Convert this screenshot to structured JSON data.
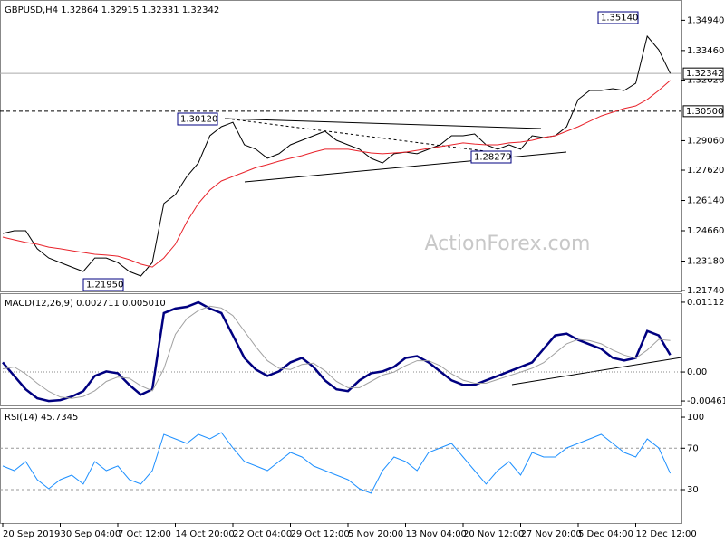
{
  "chart_data": [
    {
      "type": "line",
      "title": "GBPUSD,H4 1.32864 1.32915 1.32331 1.32342",
      "watermark": "ActionForex.com",
      "ylim": [
        1.217,
        1.3584
      ],
      "yticks": [
        {
          "value": 1.3494,
          "label": "1.34940"
        },
        {
          "value": 1.3346,
          "label": "1.33460"
        },
        {
          "value": 1.3202,
          "label": "1.32020"
        },
        {
          "value": 1.2906,
          "label": "1.29060"
        },
        {
          "value": 1.2762,
          "label": "1.27620"
        },
        {
          "value": 1.2614,
          "label": "1.26140"
        },
        {
          "value": 1.2466,
          "label": "1.24660"
        },
        {
          "value": 1.2318,
          "label": "1.23180"
        },
        {
          "value": 1.2174,
          "label": "1.21740"
        }
      ],
      "price_lines": [
        {
          "value": 1.32342,
          "label": "1.32342",
          "style": "solid"
        },
        {
          "value": 1.305,
          "label": "1.30500",
          "style": "dashed"
        }
      ],
      "annotations": [
        {
          "value": 1.3514,
          "label": "1.35140"
        },
        {
          "value": 1.3012,
          "label": "1.30120"
        },
        {
          "value": 1.2195,
          "label": "1.21950"
        },
        {
          "value": 1.28279,
          "label": "1.28279"
        }
      ],
      "series": [
        {
          "color": "#000000",
          "values": [
            1.2453,
            1.2466,
            1.2466,
            1.2378,
            1.2333,
            1.2311,
            1.2289,
            1.2267,
            1.2333,
            1.2333,
            1.2311,
            1.2267,
            1.2245,
            1.2311,
            1.2599,
            1.2643,
            1.2731,
            1.2797,
            1.293,
            1.2974,
            1.2996,
            1.2886,
            1.2864,
            1.282,
            1.2842,
            1.2886,
            1.2908,
            1.293,
            1.2952,
            1.2908,
            1.2886,
            1.2864,
            1.282,
            1.2797,
            1.2842,
            1.285,
            1.2842,
            1.2864,
            1.2886,
            1.293,
            1.293,
            1.2939,
            1.2886,
            1.2864,
            1.2886,
            1.2864,
            1.293,
            1.2921,
            1.293,
            1.2974,
            1.3107,
            1.3151,
            1.3151,
            1.316,
            1.3151,
            1.3186,
            1.3416,
            1.335,
            1.32342
          ]
        },
        {
          "color": "#e8222a",
          "values": [
            1.2435,
            1.2422,
            1.2409,
            1.24,
            1.2386,
            1.2378,
            1.2369,
            1.236,
            1.2351,
            1.2347,
            1.2342,
            1.2325,
            1.2303,
            1.2289,
            1.2333,
            1.24,
            1.251,
            1.2599,
            1.2665,
            1.2709,
            1.2731,
            1.2753,
            1.2775,
            1.2789,
            1.2806,
            1.282,
            1.2833,
            1.285,
            1.2864,
            1.2864,
            1.2864,
            1.2855,
            1.2846,
            1.2842,
            1.2846,
            1.285,
            1.2859,
            1.2868,
            1.2877,
            1.2886,
            1.2895,
            1.289,
            1.2886,
            1.2886,
            1.2895,
            1.2899,
            1.2908,
            1.2921,
            1.293,
            1.2952,
            1.2974,
            1.3001,
            1.3027,
            1.3045,
            1.3063,
            1.3076,
            1.3107,
            1.3151,
            1.32
          ]
        }
      ]
    },
    {
      "type": "line",
      "title": "MACD(12,26,9) 0.002711 0.005010",
      "ylim": [
        -0.00533,
        0.01227
      ],
      "yticks": [
        0.011123,
        {
          "value": 0,
          "label": "0.00"
        },
        -0.004617
      ],
      "series": [
        {
          "color": "#000080",
          "values": [
            0.00153,
            -0.00062,
            -0.00276,
            -0.00419,
            -0.00462,
            -0.00448,
            -0.00391,
            -0.00305,
            -0.00062,
            0.0001,
            -0.00019,
            -0.00205,
            -0.00362,
            -0.00276,
            0.0094,
            0.01012,
            0.0104,
            0.01112,
            0.01012,
            0.0094,
            0.00583,
            0.00225,
            0.00039,
            -0.00062,
            0.0001,
            0.00153,
            0.00225,
            0.00082,
            -0.00133,
            -0.00276,
            -0.00305,
            -0.00133,
            -0.00019,
            0.0001,
            0.00082,
            0.00225,
            0.00253,
            0.00153,
            0.0001,
            -0.00133,
            -0.00205,
            -0.00205,
            -0.00133,
            -0.00062,
            0.0001,
            0.00082,
            0.00153,
            0.00368,
            0.00583,
            0.00611,
            0.00511,
            0.00439,
            0.00368,
            0.00225,
            0.00182,
            0.00225,
            0.00654,
            0.00583,
            0.002711
          ]
        },
        {
          "color": "#a0a0a0",
          "values": [
            0.0005,
            0.0008,
            -0.0003,
            -0.0018,
            -0.0031,
            -0.004,
            -0.0042,
            -0.0039,
            -0.003,
            -0.0015,
            -0.0008,
            -0.001,
            -0.0022,
            -0.003,
            0.0005,
            0.006,
            0.0085,
            0.0098,
            0.0105,
            0.0102,
            0.009,
            0.0065,
            0.004,
            0.0018,
            0.0006,
            0.0004,
            0.0012,
            0.0014,
            0.0002,
            -0.0015,
            -0.0025,
            -0.0025,
            -0.0015,
            -0.0005,
            0,
            0.001,
            0.0018,
            0.0018,
            0.001,
            -0.0003,
            -0.0013,
            -0.0018,
            -0.0018,
            -0.0012,
            -0.0006,
            0,
            0.0006,
            0.0015,
            0.003,
            0.0045,
            0.0052,
            0.005,
            0.0045,
            0.0035,
            0.0027,
            0.0022,
            0.0035,
            0.0052,
            0.00501
          ]
        }
      ]
    },
    {
      "type": "line",
      "title": "RSI(14) 45.7345",
      "ylim": [
        -2.4,
        107.9
      ],
      "yticks": [
        100,
        70,
        30
      ],
      "levels": [
        70,
        30
      ],
      "categories": [
        "20 Sep 2019",
        null,
        null,
        null,
        null,
        "30 Sep 04:00",
        null,
        null,
        null,
        null,
        "7 Oct 12:00",
        null,
        null,
        null,
        null,
        "14 Oct 20:00",
        null,
        null,
        null,
        null,
        "22 Oct 04:00",
        null,
        null,
        null,
        null,
        "29 Oct 12:00",
        null,
        null,
        null,
        null,
        "5 Nov 20:00",
        null,
        null,
        null,
        null,
        "13 Nov 04:00",
        null,
        null,
        null,
        null,
        "20 Nov 12:00",
        null,
        null,
        null,
        null,
        "27 Nov 20:00",
        null,
        null,
        null,
        null,
        "5 Dec 04:00",
        null,
        null,
        null,
        null,
        "12 Dec 12:00",
        null,
        null,
        null
      ],
      "series": [
        {
          "color": "#1e90ff",
          "values": [
            52.8,
            48.4,
            57.1,
            39.6,
            30.9,
            39.6,
            44.0,
            35.3,
            57.1,
            48.4,
            52.8,
            39.6,
            35.3,
            48.4,
            83.4,
            79.0,
            74.6,
            83.4,
            79.0,
            85.1,
            70.3,
            57.1,
            52.8,
            48.4,
            57.1,
            65.9,
            61.5,
            52.8,
            48.4,
            44.0,
            39.6,
            30.9,
            26.5,
            48.4,
            61.5,
            57.1,
            48.4,
            65.9,
            70.3,
            74.6,
            61.5,
            48.4,
            35.3,
            48.4,
            57.1,
            44.0,
            65.9,
            61.5,
            61.5,
            70.3,
            74.6,
            79.0,
            83.4,
            74.6,
            65.9,
            61.5,
            79.0,
            70.3,
            45.7
          ]
        }
      ]
    }
  ]
}
